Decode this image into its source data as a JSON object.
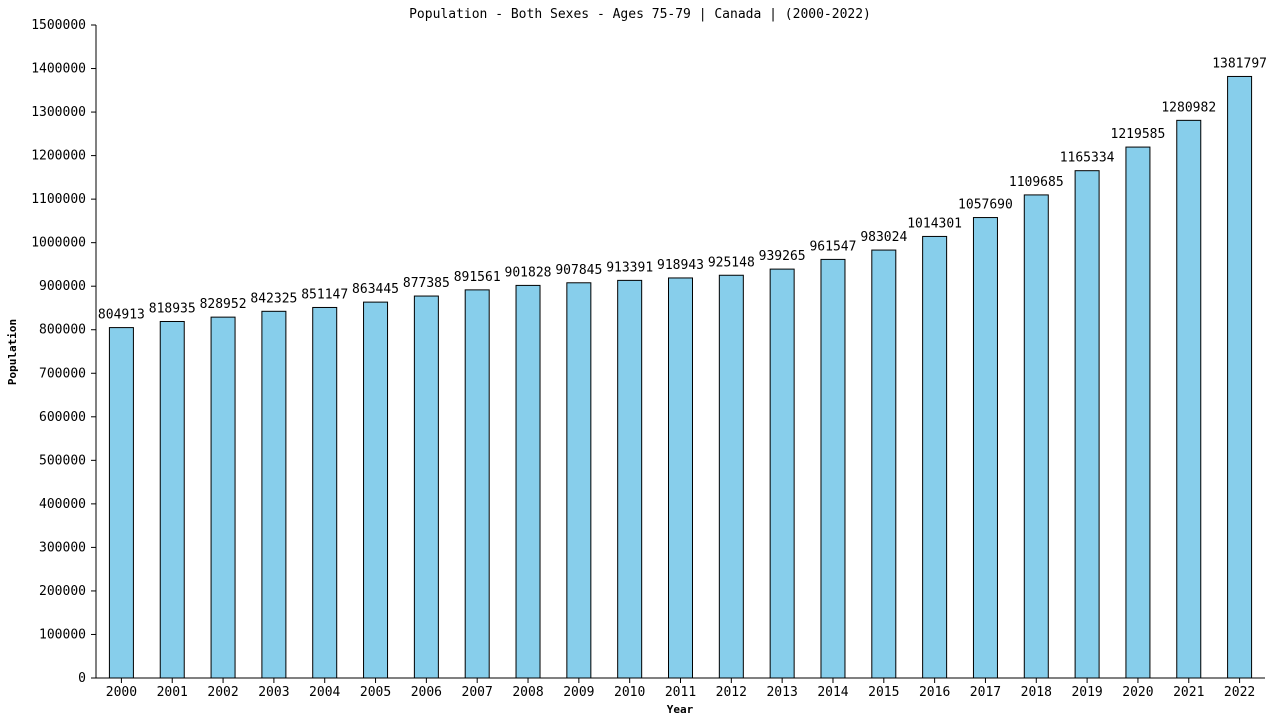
{
  "chart_data": {
    "type": "bar",
    "title": "Population - Both Sexes - Ages 75-79 | Canada |  (2000-2022)",
    "xlabel": "Year",
    "ylabel": "Population",
    "ylim": [
      0,
      1500000
    ],
    "yticks": [
      "0",
      "100000",
      "200000",
      "300000",
      "400000",
      "500000",
      "600000",
      "700000",
      "800000",
      "900000",
      "1000000",
      "1100000",
      "1200000",
      "1300000",
      "1400000",
      "1500000"
    ],
    "categories": [
      "2000",
      "2001",
      "2002",
      "2003",
      "2004",
      "2005",
      "2006",
      "2007",
      "2008",
      "2009",
      "2010",
      "2011",
      "2012",
      "2013",
      "2014",
      "2015",
      "2016",
      "2017",
      "2018",
      "2019",
      "2020",
      "2021",
      "2022"
    ],
    "values": [
      804913,
      818935,
      828952,
      842325,
      851147,
      863445,
      877385,
      891561,
      901828,
      907845,
      913391,
      918943,
      925148,
      939265,
      961547,
      983024,
      1014301,
      1057690,
      1109685,
      1165334,
      1219585,
      1280982,
      1381797
    ],
    "grid": false,
    "colors": {
      "bar_fill": "#87ceeb",
      "bar_stroke": "#000000",
      "axis": "#000000"
    }
  }
}
